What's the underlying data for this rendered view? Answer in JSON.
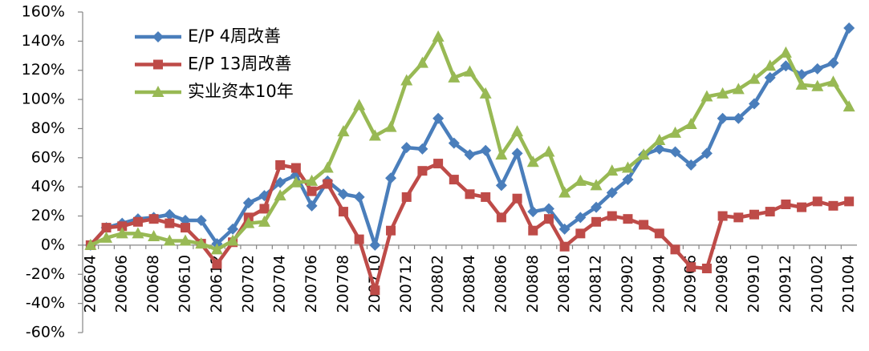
{
  "chart_data": {
    "type": "line",
    "categories": [
      "200604",
      null,
      "200606",
      null,
      "200608",
      null,
      "200610",
      null,
      "200612",
      null,
      "200702",
      null,
      "200704",
      null,
      "200706",
      null,
      "200708",
      null,
      "200710",
      null,
      "200712",
      null,
      "200802",
      null,
      "200804",
      null,
      "200806",
      null,
      "200808",
      null,
      "200810",
      null,
      "200812",
      null,
      "200902",
      null,
      "200904",
      null,
      "200906",
      null,
      "200908",
      null,
      "200910",
      null,
      "200912",
      null,
      "201002",
      null,
      "201004"
    ],
    "series": [
      {
        "name": "E/P 4周改善",
        "color": "#4a7ebb",
        "marker": "diamond",
        "values": [
          0,
          12,
          15,
          18,
          19,
          21,
          17,
          17,
          1,
          11,
          29,
          34,
          43,
          48,
          27,
          44,
          35,
          33,
          0,
          46,
          67,
          66,
          87,
          70,
          62,
          65,
          41,
          63,
          23,
          25,
          11,
          19,
          26,
          36,
          45,
          62,
          66,
          64,
          55,
          63,
          87,
          87,
          97,
          115,
          123,
          117,
          121,
          125,
          149
        ]
      },
      {
        "name": "E/P 13周改善",
        "color": "#be4b48",
        "marker": "square",
        "values": [
          0,
          12,
          13,
          16,
          18,
          15,
          12,
          1,
          -13,
          2,
          19,
          25,
          55,
          53,
          37,
          42,
          23,
          4,
          -31,
          10,
          33,
          51,
          56,
          45,
          35,
          33,
          19,
          32,
          10,
          18,
          -1,
          8,
          16,
          20,
          18,
          14,
          8,
          -3,
          -15,
          -16,
          20,
          19,
          21,
          23,
          28,
          26,
          30,
          27,
          30
        ]
      },
      {
        "name": "实业资本10年",
        "color": "#98b954",
        "marker": "triangle",
        "values": [
          0,
          5,
          8,
          8,
          6,
          3,
          3,
          1,
          -3,
          3,
          15,
          16,
          34,
          43,
          44,
          53,
          78,
          96,
          75,
          81,
          113,
          125,
          143,
          115,
          119,
          104,
          62,
          78,
          57,
          64,
          36,
          44,
          41,
          51,
          53,
          62,
          72,
          77,
          83,
          102,
          104,
          107,
          114,
          123,
          132,
          110,
          109,
          112,
          95
        ]
      }
    ],
    "ylim": [
      -60,
      160
    ],
    "yticks": [
      {
        "value": -60,
        "label": "-60%"
      },
      {
        "value": -40,
        "label": "-40%"
      },
      {
        "value": -20,
        "label": "-20%"
      },
      {
        "value": 0,
        "label": "0%"
      },
      {
        "value": 20,
        "label": "20%"
      },
      {
        "value": 40,
        "label": "40%"
      },
      {
        "value": 60,
        "label": "60%"
      },
      {
        "value": 80,
        "label": "80%"
      },
      {
        "value": 100,
        "label": "100%"
      },
      {
        "value": 120,
        "label": "120%"
      },
      {
        "value": 140,
        "label": "140%"
      },
      {
        "value": 160,
        "label": "160%"
      }
    ],
    "grid": false,
    "legend": "upper left"
  }
}
